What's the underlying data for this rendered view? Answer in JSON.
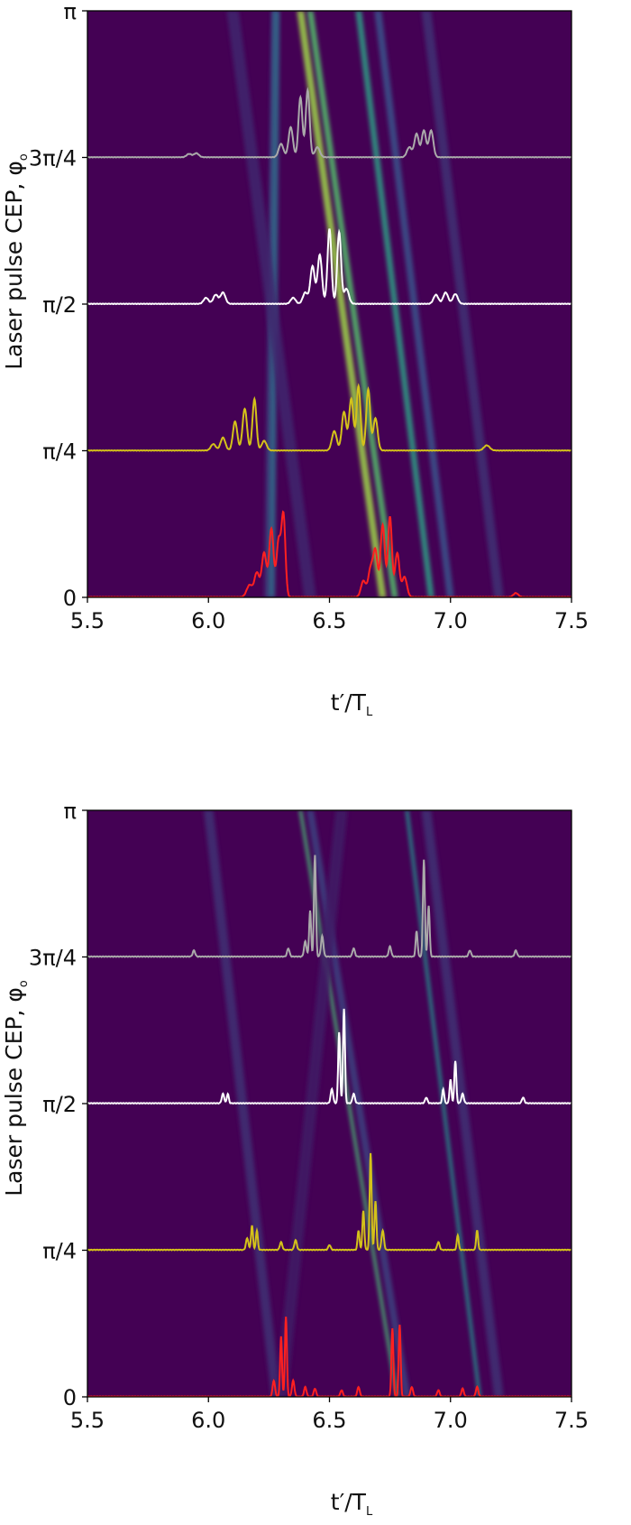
{
  "chart_data": [
    {
      "type": "heatmap",
      "panel": "top",
      "xlabel": "t′/T",
      "xlabel_sub": "L",
      "ylabel": "Laser pulse CEP, φ",
      "ylabel_sub": "o",
      "xlim": [
        5.5,
        7.5
      ],
      "ylim": [
        0,
        3.14159
      ],
      "xticks": [
        5.5,
        6.0,
        6.5,
        7.0,
        7.5
      ],
      "xtick_labels": [
        "5.5",
        "6.0",
        "6.5",
        "7.0",
        "7.5"
      ],
      "yticks": [
        0,
        0.7854,
        1.5708,
        2.3562,
        3.14159
      ],
      "ytick_labels": [
        "0",
        "π/4",
        "π/2",
        "3π/4",
        "π"
      ],
      "grid": false,
      "colormap": "viridis",
      "background_color": "#440154",
      "bands": [
        {
          "t_top": 6.27,
          "t_bottom": 6.24,
          "strength": 0.15,
          "width": 0.022
        },
        {
          "t_top": 6.28,
          "t_bottom": 6.26,
          "strength": 0.35,
          "width": 0.03
        },
        {
          "t_top": 6.38,
          "t_bottom": 6.72,
          "strength": 0.85,
          "width": 0.03
        },
        {
          "t_top": 6.42,
          "t_bottom": 6.77,
          "strength": 0.7,
          "width": 0.026
        },
        {
          "t_top": 6.62,
          "t_bottom": 6.92,
          "strength": 0.55,
          "width": 0.026
        },
        {
          "t_top": 6.7,
          "t_bottom": 7.0,
          "strength": 0.25,
          "width": 0.03
        },
        {
          "t_top": 6.9,
          "t_bottom": 7.2,
          "strength": 0.15,
          "width": 0.04
        },
        {
          "t_top": 6.1,
          "t_bottom": 6.42,
          "strength": 0.12,
          "width": 0.05
        }
      ],
      "series": [
        {
          "cep": 0,
          "color": "#ff2020",
          "scale": 0.66,
          "peaks": [
            {
              "t": 6.17,
              "a": 0.15,
              "w": 0.012
            },
            {
              "t": 6.2,
              "a": 0.3,
              "w": 0.01
            },
            {
              "t": 6.23,
              "a": 0.55,
              "w": 0.01
            },
            {
              "t": 6.26,
              "a": 0.85,
              "w": 0.009
            },
            {
              "t": 6.29,
              "a": 0.7,
              "w": 0.009
            },
            {
              "t": 6.31,
              "a": 1.0,
              "w": 0.008
            },
            {
              "t": 6.64,
              "a": 0.2,
              "w": 0.01
            },
            {
              "t": 6.67,
              "a": 0.35,
              "w": 0.01
            },
            {
              "t": 6.69,
              "a": 0.55,
              "w": 0.009
            },
            {
              "t": 6.72,
              "a": 0.9,
              "w": 0.009
            },
            {
              "t": 6.75,
              "a": 1.0,
              "w": 0.008
            },
            {
              "t": 6.78,
              "a": 0.55,
              "w": 0.009
            },
            {
              "t": 6.81,
              "a": 0.25,
              "w": 0.01
            },
            {
              "t": 7.27,
              "a": 0.05,
              "w": 0.01
            }
          ]
        },
        {
          "cep": 0.7854,
          "color": "#d4c21a",
          "scale": 0.53,
          "peaks": [
            {
              "t": 6.02,
              "a": 0.1,
              "w": 0.01
            },
            {
              "t": 6.06,
              "a": 0.2,
              "w": 0.01
            },
            {
              "t": 6.11,
              "a": 0.45,
              "w": 0.009
            },
            {
              "t": 6.15,
              "a": 0.65,
              "w": 0.009
            },
            {
              "t": 6.19,
              "a": 0.8,
              "w": 0.008
            },
            {
              "t": 6.23,
              "a": 0.15,
              "w": 0.01
            },
            {
              "t": 6.52,
              "a": 0.3,
              "w": 0.01
            },
            {
              "t": 6.56,
              "a": 0.6,
              "w": 0.009
            },
            {
              "t": 6.59,
              "a": 0.8,
              "w": 0.009
            },
            {
              "t": 6.62,
              "a": 1.0,
              "w": 0.008
            },
            {
              "t": 6.66,
              "a": 0.95,
              "w": 0.008
            },
            {
              "t": 6.69,
              "a": 0.5,
              "w": 0.009
            },
            {
              "t": 7.15,
              "a": 0.08,
              "w": 0.012
            }
          ]
        },
        {
          "cep": 1.5708,
          "color": "#ffffff",
          "scale": 0.62,
          "peaks": [
            {
              "t": 5.99,
              "a": 0.08,
              "w": 0.01
            },
            {
              "t": 6.03,
              "a": 0.12,
              "w": 0.01
            },
            {
              "t": 6.06,
              "a": 0.15,
              "w": 0.01
            },
            {
              "t": 6.35,
              "a": 0.08,
              "w": 0.01
            },
            {
              "t": 6.4,
              "a": 0.15,
              "w": 0.01
            },
            {
              "t": 6.43,
              "a": 0.5,
              "w": 0.009
            },
            {
              "t": 6.46,
              "a": 0.65,
              "w": 0.009
            },
            {
              "t": 6.5,
              "a": 1.0,
              "w": 0.008
            },
            {
              "t": 6.54,
              "a": 0.95,
              "w": 0.008
            },
            {
              "t": 6.57,
              "a": 0.2,
              "w": 0.01
            },
            {
              "t": 6.94,
              "a": 0.12,
              "w": 0.01
            },
            {
              "t": 6.98,
              "a": 0.15,
              "w": 0.01
            },
            {
              "t": 7.02,
              "a": 0.13,
              "w": 0.01
            }
          ]
        },
        {
          "cep": 2.3562,
          "color": "#aaaaaa",
          "scale": 0.55,
          "peaks": [
            {
              "t": 5.92,
              "a": 0.05,
              "w": 0.01
            },
            {
              "t": 5.95,
              "a": 0.06,
              "w": 0.01
            },
            {
              "t": 6.3,
              "a": 0.2,
              "w": 0.01
            },
            {
              "t": 6.34,
              "a": 0.45,
              "w": 0.009
            },
            {
              "t": 6.38,
              "a": 0.9,
              "w": 0.008
            },
            {
              "t": 6.41,
              "a": 1.0,
              "w": 0.008
            },
            {
              "t": 6.45,
              "a": 0.15,
              "w": 0.01
            },
            {
              "t": 6.83,
              "a": 0.15,
              "w": 0.01
            },
            {
              "t": 6.86,
              "a": 0.35,
              "w": 0.009
            },
            {
              "t": 6.89,
              "a": 0.4,
              "w": 0.009
            },
            {
              "t": 6.92,
              "a": 0.4,
              "w": 0.009
            }
          ]
        }
      ]
    },
    {
      "type": "heatmap",
      "panel": "bottom",
      "xlabel": "t′/T",
      "xlabel_sub": "L",
      "ylabel": "Laser pulse CEP, φ",
      "ylabel_sub": "o",
      "xlim": [
        5.5,
        7.5
      ],
      "ylim": [
        0,
        3.14159
      ],
      "xticks": [
        5.5,
        6.0,
        6.5,
        7.0,
        7.5
      ],
      "xtick_labels": [
        "5.5",
        "6.0",
        "6.5",
        "7.0",
        "7.5"
      ],
      "yticks": [
        0,
        0.7854,
        1.5708,
        2.3562,
        3.14159
      ],
      "ytick_labels": [
        "0",
        "π/4",
        "π/2",
        "3π/4",
        "π"
      ],
      "grid": false,
      "colormap": "viridis",
      "background_color": "#440154",
      "bands": [
        {
          "t_top": 6.0,
          "t_bottom": 6.28,
          "strength": 0.15,
          "width": 0.04
        },
        {
          "t_top": 6.38,
          "t_bottom": 6.78,
          "strength": 0.65,
          "width": 0.014
        },
        {
          "t_top": 6.42,
          "t_bottom": 6.82,
          "strength": 0.2,
          "width": 0.03
        },
        {
          "t_top": 6.82,
          "t_bottom": 7.12,
          "strength": 0.5,
          "width": 0.014
        },
        {
          "t_top": 6.9,
          "t_bottom": 7.2,
          "strength": 0.15,
          "width": 0.04
        },
        {
          "t_top": 6.55,
          "t_bottom": 6.3,
          "strength": 0.08,
          "width": 0.05
        }
      ],
      "series": [
        {
          "cep": 0,
          "color": "#ff2020",
          "scale": 0.66,
          "peaks": [
            {
              "t": 6.27,
              "a": 0.2,
              "w": 0.005
            },
            {
              "t": 6.3,
              "a": 0.75,
              "w": 0.004
            },
            {
              "t": 6.32,
              "a": 1.0,
              "w": 0.004
            },
            {
              "t": 6.35,
              "a": 0.2,
              "w": 0.005
            },
            {
              "t": 6.4,
              "a": 0.12,
              "w": 0.005
            },
            {
              "t": 6.44,
              "a": 0.1,
              "w": 0.005
            },
            {
              "t": 6.55,
              "a": 0.08,
              "w": 0.005
            },
            {
              "t": 6.62,
              "a": 0.12,
              "w": 0.005
            },
            {
              "t": 6.76,
              "a": 0.85,
              "w": 0.004
            },
            {
              "t": 6.79,
              "a": 0.9,
              "w": 0.004
            },
            {
              "t": 6.84,
              "a": 0.12,
              "w": 0.005
            },
            {
              "t": 6.95,
              "a": 0.08,
              "w": 0.005
            },
            {
              "t": 7.05,
              "a": 0.1,
              "w": 0.005
            },
            {
              "t": 7.11,
              "a": 0.12,
              "w": 0.005
            }
          ]
        },
        {
          "cep": 0.7854,
          "color": "#d4c21a",
          "scale": 0.8,
          "peaks": [
            {
              "t": 6.16,
              "a": 0.12,
              "w": 0.005
            },
            {
              "t": 6.18,
              "a": 0.25,
              "w": 0.004
            },
            {
              "t": 6.2,
              "a": 0.2,
              "w": 0.004
            },
            {
              "t": 6.3,
              "a": 0.08,
              "w": 0.005
            },
            {
              "t": 6.36,
              "a": 0.1,
              "w": 0.005
            },
            {
              "t": 6.5,
              "a": 0.05,
              "w": 0.005
            },
            {
              "t": 6.62,
              "a": 0.2,
              "w": 0.004
            },
            {
              "t": 6.64,
              "a": 0.4,
              "w": 0.004
            },
            {
              "t": 6.67,
              "a": 1.0,
              "w": 0.004
            },
            {
              "t": 6.69,
              "a": 0.5,
              "w": 0.004
            },
            {
              "t": 6.72,
              "a": 0.2,
              "w": 0.005
            },
            {
              "t": 6.95,
              "a": 0.08,
              "w": 0.005
            },
            {
              "t": 7.03,
              "a": 0.15,
              "w": 0.004
            },
            {
              "t": 7.11,
              "a": 0.2,
              "w": 0.004
            }
          ]
        },
        {
          "cep": 1.5708,
          "color": "#ffffff",
          "scale": 0.78,
          "peaks": [
            {
              "t": 6.06,
              "a": 0.1,
              "w": 0.005
            },
            {
              "t": 6.08,
              "a": 0.1,
              "w": 0.004
            },
            {
              "t": 6.51,
              "a": 0.15,
              "w": 0.005
            },
            {
              "t": 6.54,
              "a": 0.75,
              "w": 0.004
            },
            {
              "t": 6.56,
              "a": 1.0,
              "w": 0.004
            },
            {
              "t": 6.6,
              "a": 0.1,
              "w": 0.005
            },
            {
              "t": 6.9,
              "a": 0.06,
              "w": 0.005
            },
            {
              "t": 6.97,
              "a": 0.15,
              "w": 0.004
            },
            {
              "t": 7.0,
              "a": 0.25,
              "w": 0.004
            },
            {
              "t": 7.02,
              "a": 0.45,
              "w": 0.004
            },
            {
              "t": 7.05,
              "a": 0.1,
              "w": 0.005
            },
            {
              "t": 7.3,
              "a": 0.06,
              "w": 0.005
            }
          ]
        },
        {
          "cep": 2.3562,
          "color": "#aaaaaa",
          "scale": 0.84,
          "peaks": [
            {
              "t": 5.94,
              "a": 0.06,
              "w": 0.005
            },
            {
              "t": 6.33,
              "a": 0.08,
              "w": 0.005
            },
            {
              "t": 6.4,
              "a": 0.15,
              "w": 0.005
            },
            {
              "t": 6.42,
              "a": 0.45,
              "w": 0.004
            },
            {
              "t": 6.44,
              "a": 1.0,
              "w": 0.004
            },
            {
              "t": 6.47,
              "a": 0.2,
              "w": 0.005
            },
            {
              "t": 6.6,
              "a": 0.08,
              "w": 0.005
            },
            {
              "t": 6.75,
              "a": 0.1,
              "w": 0.005
            },
            {
              "t": 6.86,
              "a": 0.25,
              "w": 0.004
            },
            {
              "t": 6.89,
              "a": 0.95,
              "w": 0.004
            },
            {
              "t": 6.91,
              "a": 0.5,
              "w": 0.004
            },
            {
              "t": 7.08,
              "a": 0.06,
              "w": 0.005
            },
            {
              "t": 7.27,
              "a": 0.06,
              "w": 0.005
            }
          ]
        }
      ]
    }
  ]
}
